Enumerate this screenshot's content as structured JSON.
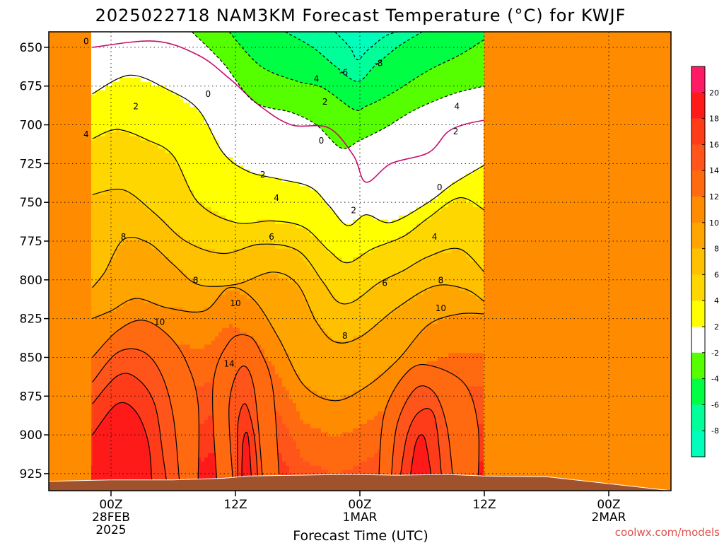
{
  "chart_data": {
    "type": "heatmap",
    "title": "2025022718 NAM3KM Forecast Temperature (°C) for KWJF",
    "xlabel": "Forecast Time (UTC)",
    "ylabel": "",
    "credit": "coolwx.com/models",
    "y_scale": "pressure (hPa), decreasing upward",
    "ylim": [
      936,
      640
    ],
    "y_ticks": [
      "650",
      "675",
      "700",
      "725",
      "750",
      "775",
      "800",
      "825",
      "850",
      "875",
      "900",
      "925"
    ],
    "x_ticks": [
      {
        "line1": "00Z",
        "line2": "28FEB",
        "line3": "2025"
      },
      {
        "line1": "12Z",
        "line2": "",
        "line3": ""
      },
      {
        "line1": "00Z",
        "line2": "1MAR",
        "line3": ""
      },
      {
        "line1": "12Z",
        "line2": "",
        "line3": ""
      },
      {
        "line1": "00Z",
        "line2": "2MAR",
        "line3": ""
      }
    ],
    "colorbar": {
      "labels": [
        "20",
        "18",
        "16",
        "14",
        "12",
        "10",
        "8",
        "6",
        "4",
        "2",
        "-2",
        "-4",
        "-6",
        "-8"
      ],
      "bins": [
        {
          "range": [
            20,
            22
          ],
          "color": "#ff1a66"
        },
        {
          "range": [
            18,
            20
          ],
          "color": "#ff1a1a"
        },
        {
          "range": [
            16,
            18
          ],
          "color": "#ff3c1a"
        },
        {
          "range": [
            14,
            16
          ],
          "color": "#ff551a"
        },
        {
          "range": [
            12,
            14
          ],
          "color": "#ff6a10"
        },
        {
          "range": [
            10,
            12
          ],
          "color": "#ff8c00"
        },
        {
          "range": [
            8,
            10
          ],
          "color": "#ffa500"
        },
        {
          "range": [
            6,
            8
          ],
          "color": "#ffc000"
        },
        {
          "range": [
            4,
            6
          ],
          "color": "#ffd700"
        },
        {
          "range": [
            2,
            4
          ],
          "color": "#ffff00"
        },
        {
          "range": [
            -2,
            2
          ],
          "color": "#ffffff"
        },
        {
          "range": [
            -4,
            -2
          ],
          "color": "#55ff00"
        },
        {
          "range": [
            -6,
            -4
          ],
          "color": "#00ff44"
        },
        {
          "range": [
            -8,
            -6
          ],
          "color": "#00ff99"
        },
        {
          "range": [
            -10,
            -8
          ],
          "color": "#00ffbb"
        }
      ]
    },
    "ground_color": "#a0522d",
    "isotherm_0_color": "#c8106e",
    "series": [
      {
        "value": 0,
        "points": [
          [
            -0.15,
            650
          ],
          [
            0.35,
            646
          ],
          [
            0.7,
            655
          ],
          [
            0.95,
            670
          ],
          [
            1.2,
            688
          ],
          [
            1.45,
            700
          ],
          [
            1.75,
            702
          ],
          [
            1.95,
            720
          ],
          [
            2.05,
            737
          ],
          [
            2.25,
            725
          ],
          [
            2.55,
            718
          ],
          [
            2.7,
            705
          ],
          [
            2.83,
            700
          ],
          [
            3.0,
            697
          ]
        ]
      },
      {
        "value": 2,
        "points": [
          [
            -0.15,
            680
          ],
          [
            0.15,
            668
          ],
          [
            0.45,
            677
          ],
          [
            0.7,
            690
          ],
          [
            0.9,
            718
          ],
          [
            1.1,
            730
          ],
          [
            1.35,
            735
          ],
          [
            1.6,
            740
          ],
          [
            1.75,
            752
          ],
          [
            1.9,
            765
          ],
          [
            2.05,
            758
          ],
          [
            2.25,
            763
          ],
          [
            2.55,
            750
          ],
          [
            2.75,
            738
          ],
          [
            3.0,
            726
          ]
        ]
      },
      {
        "value": 4,
        "points": [
          [
            -0.15,
            709
          ],
          [
            0.05,
            703
          ],
          [
            0.3,
            710
          ],
          [
            0.5,
            720
          ],
          [
            0.7,
            750
          ],
          [
            1.0,
            763
          ],
          [
            1.3,
            762
          ],
          [
            1.55,
            766
          ],
          [
            1.75,
            781
          ],
          [
            1.9,
            789
          ],
          [
            2.1,
            780
          ],
          [
            2.35,
            772
          ],
          [
            2.55,
            760
          ],
          [
            2.8,
            747
          ],
          [
            3.0,
            755
          ]
        ]
      },
      {
        "value": 6,
        "points": [
          [
            -0.15,
            745
          ],
          [
            0.1,
            742
          ],
          [
            0.35,
            757
          ],
          [
            0.6,
            775
          ],
          [
            0.9,
            783
          ],
          [
            1.2,
            777
          ],
          [
            1.5,
            781
          ],
          [
            1.7,
            801
          ],
          [
            1.82,
            814
          ],
          [
            1.95,
            814
          ],
          [
            2.15,
            802
          ],
          [
            2.35,
            794
          ],
          [
            2.55,
            785
          ],
          [
            2.8,
            780
          ],
          [
            3.0,
            795
          ]
        ]
      },
      {
        "value": 8,
        "points": [
          [
            -0.15,
            805
          ],
          [
            -0.05,
            795
          ],
          [
            0.1,
            774
          ],
          [
            0.3,
            776
          ],
          [
            0.5,
            790
          ],
          [
            0.7,
            803
          ],
          [
            1.0,
            803
          ],
          [
            1.3,
            795
          ],
          [
            1.5,
            803
          ],
          [
            1.65,
            827
          ],
          [
            1.8,
            840
          ],
          [
            2.0,
            837
          ],
          [
            2.3,
            818
          ],
          [
            2.6,
            804
          ],
          [
            2.85,
            806
          ],
          [
            3.0,
            814
          ]
        ]
      },
      {
        "value": 10,
        "points": [
          [
            -0.15,
            825
          ],
          [
            0.0,
            820
          ],
          [
            0.2,
            812
          ],
          [
            0.45,
            818
          ],
          [
            0.75,
            820
          ],
          [
            0.95,
            805
          ],
          [
            1.15,
            813
          ],
          [
            1.35,
            838
          ],
          [
            1.55,
            868
          ],
          [
            1.8,
            878
          ],
          [
            2.05,
            869
          ],
          [
            2.3,
            852
          ],
          [
            2.55,
            829
          ],
          [
            2.8,
            822
          ],
          [
            3.0,
            822
          ]
        ]
      },
      {
        "value": 12,
        "points": [
          [
            -0.15,
            850
          ],
          [
            0.05,
            833
          ],
          [
            0.25,
            826
          ],
          [
            0.45,
            835
          ],
          [
            0.6,
            852
          ],
          [
            0.7,
            880
          ],
          [
            0.7,
            930
          ]
        ]
      },
      {
        "value": 12,
        "points": [
          [
            0.85,
            930
          ],
          [
            0.82,
            868
          ],
          [
            0.95,
            840
          ],
          [
            1.1,
            836
          ],
          [
            1.2,
            846
          ],
          [
            1.3,
            870
          ],
          [
            1.35,
            925
          ]
        ]
      },
      {
        "value": 12,
        "points": [
          [
            2.15,
            930
          ],
          [
            2.2,
            885
          ],
          [
            2.4,
            858
          ],
          [
            2.6,
            856
          ],
          [
            2.85,
            868
          ],
          [
            2.95,
            895
          ],
          [
            2.95,
            930
          ]
        ]
      },
      {
        "value": 14,
        "points": [
          [
            -0.15,
            866
          ],
          [
            0.05,
            847
          ],
          [
            0.25,
            846
          ],
          [
            0.4,
            860
          ],
          [
            0.5,
            888
          ],
          [
            0.55,
            930
          ]
        ]
      },
      {
        "value": 14,
        "points": [
          [
            0.98,
            930
          ],
          [
            0.95,
            880
          ],
          [
            1.05,
            856
          ],
          [
            1.15,
            870
          ],
          [
            1.22,
            930
          ]
        ]
      },
      {
        "value": 14,
        "points": [
          [
            2.25,
            930
          ],
          [
            2.3,
            893
          ],
          [
            2.45,
            870
          ],
          [
            2.6,
            873
          ],
          [
            2.7,
            895
          ],
          [
            2.75,
            930
          ]
        ]
      },
      {
        "value": 16,
        "points": [
          [
            -0.15,
            880
          ],
          [
            0.05,
            862
          ],
          [
            0.2,
            863
          ],
          [
            0.35,
            880
          ],
          [
            0.42,
            915
          ],
          [
            0.45,
            932
          ]
        ]
      },
      {
        "value": 16,
        "points": [
          [
            1.02,
            930
          ],
          [
            1.02,
            893
          ],
          [
            1.08,
            880
          ],
          [
            1.15,
            900
          ],
          [
            1.18,
            928
          ]
        ]
      },
      {
        "value": 16,
        "points": [
          [
            2.32,
            930
          ],
          [
            2.38,
            900
          ],
          [
            2.48,
            885
          ],
          [
            2.6,
            888
          ],
          [
            2.66,
            930
          ]
        ]
      },
      {
        "value": 18,
        "points": [
          [
            -0.15,
            900
          ],
          [
            0.05,
            880
          ],
          [
            0.2,
            885
          ],
          [
            0.3,
            905
          ],
          [
            0.33,
            932
          ]
        ]
      },
      {
        "value": 18,
        "points": [
          [
            1.05,
            930
          ],
          [
            1.06,
            905
          ],
          [
            1.1,
            900
          ],
          [
            1.13,
            930
          ]
        ]
      },
      {
        "value": 18,
        "points": [
          [
            2.4,
            930
          ],
          [
            2.45,
            905
          ],
          [
            2.52,
            902
          ],
          [
            2.58,
            930
          ]
        ]
      },
      {
        "value": -2,
        "points": [
          [
            0.65,
            640
          ],
          [
            0.9,
            660
          ],
          [
            1.15,
            685
          ],
          [
            1.45,
            692
          ],
          [
            1.65,
            700
          ],
          [
            1.85,
            715
          ],
          [
            2.0,
            710
          ],
          [
            2.2,
            702
          ],
          [
            2.45,
            690
          ],
          [
            2.75,
            680
          ],
          [
            3.0,
            675
          ]
        ]
      },
      {
        "value": -4,
        "points": [
          [
            0.95,
            640
          ],
          [
            1.2,
            662
          ],
          [
            1.5,
            672
          ],
          [
            1.7,
            676
          ],
          [
            1.95,
            690
          ],
          [
            2.05,
            688
          ],
          [
            2.25,
            680
          ],
          [
            2.55,
            665
          ],
          [
            2.8,
            655
          ],
          [
            3.0,
            645
          ]
        ]
      },
      {
        "value": -6,
        "points": [
          [
            1.4,
            640
          ],
          [
            1.62,
            650
          ],
          [
            1.8,
            662
          ],
          [
            1.98,
            672
          ],
          [
            2.12,
            662
          ],
          [
            2.3,
            650
          ],
          [
            2.5,
            640
          ]
        ]
      },
      {
        "value": -8,
        "points": [
          [
            1.8,
            640
          ],
          [
            1.92,
            650
          ],
          [
            1.98,
            658
          ],
          [
            2.06,
            652
          ],
          [
            2.2,
            643
          ],
          [
            2.3,
            640
          ]
        ]
      }
    ],
    "contour_labels": [
      {
        "text": "0",
        "x": -0.2,
        "y": 646
      },
      {
        "text": "0",
        "x": 0.78,
        "y": 680
      },
      {
        "text": "0",
        "x": 1.69,
        "y": 710
      },
      {
        "text": "0",
        "x": 2.64,
        "y": 740
      },
      {
        "text": "2",
        "x": 0.2,
        "y": 688
      },
      {
        "text": "2",
        "x": 1.22,
        "y": 732
      },
      {
        "text": "2",
        "x": 1.72,
        "y": 685
      },
      {
        "text": "2",
        "x": 1.95,
        "y": 755
      },
      {
        "text": "2",
        "x": 2.77,
        "y": 704
      },
      {
        "text": "4",
        "x": -0.2,
        "y": 706
      },
      {
        "text": "4",
        "x": 1.33,
        "y": 747
      },
      {
        "text": "4",
        "x": 1.65,
        "y": 670
      },
      {
        "text": "4",
        "x": 2.6,
        "y": 772
      },
      {
        "text": "4",
        "x": 2.78,
        "y": 688
      },
      {
        "text": "6",
        "x": 1.29,
        "y": 772
      },
      {
        "text": "6",
        "x": 2.2,
        "y": 802
      },
      {
        "text": "-6",
        "x": 1.87,
        "y": 666
      },
      {
        "text": "-8",
        "x": 2.15,
        "y": 660
      },
      {
        "text": "8",
        "x": 0.1,
        "y": 772
      },
      {
        "text": "8",
        "x": 0.68,
        "y": 800
      },
      {
        "text": "8",
        "x": 1.88,
        "y": 836
      },
      {
        "text": "8",
        "x": 2.65,
        "y": 800
      },
      {
        "text": "10",
        "x": 0.39,
        "y": 827
      },
      {
        "text": "10",
        "x": 1.0,
        "y": 815
      },
      {
        "text": "10",
        "x": 2.65,
        "y": 818
      },
      {
        "text": "14",
        "x": 0.95,
        "y": 854
      }
    ]
  }
}
